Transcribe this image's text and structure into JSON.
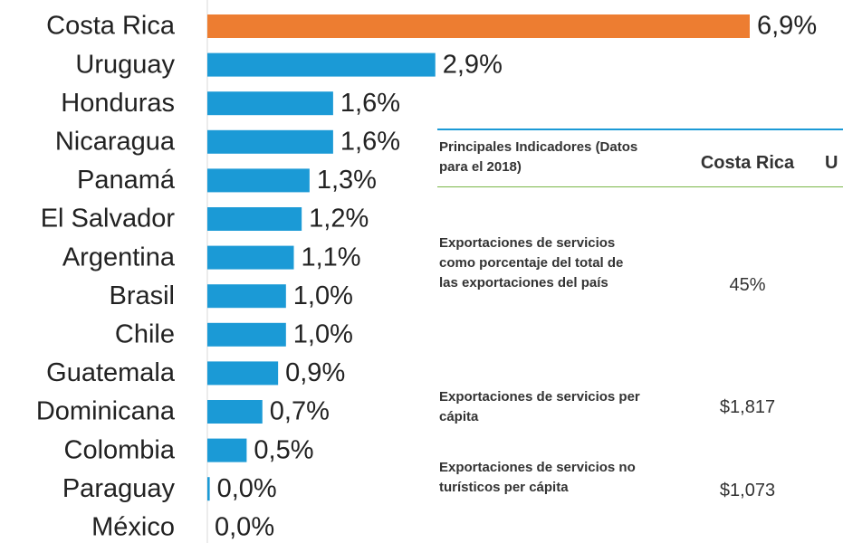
{
  "chart_data": {
    "type": "bar",
    "orientation": "horizontal",
    "categories": [
      "Costa Rica",
      "Uruguay",
      "Honduras",
      "Nicaragua",
      "Panamá",
      "El Salvador",
      "Argentina",
      "Brasil",
      "Chile",
      "Guatemala",
      "Dominicana",
      "Colombia",
      "Paraguay",
      "México"
    ],
    "values": [
      6.9,
      2.9,
      1.6,
      1.6,
      1.3,
      1.2,
      1.1,
      1.0,
      1.0,
      0.9,
      0.7,
      0.5,
      0.03,
      0.0
    ],
    "value_labels": [
      "6,9%",
      "2,9%",
      "1,6%",
      "1,6%",
      "1,3%",
      "1,2%",
      "1,1%",
      "1,0%",
      "1,0%",
      "0,9%",
      "0,7%",
      "0,5%",
      "0,0%",
      "0,0%"
    ],
    "colors": [
      "#ed7d31",
      "#1b9ad6",
      "#1b9ad6",
      "#1b9ad6",
      "#1b9ad6",
      "#1b9ad6",
      "#1b9ad6",
      "#1b9ad6",
      "#1b9ad6",
      "#1b9ad6",
      "#1b9ad6",
      "#1b9ad6",
      "#1b9ad6",
      "#1b9ad6"
    ],
    "xlim": [
      0,
      6.9
    ]
  },
  "table": {
    "header": [
      "Principales Indicadores (Datos para el 2018)",
      "Costa Rica",
      "U"
    ],
    "rows": [
      [
        "Exportaciones de servicios como porcentaje del total de las exportaciones del país",
        "45%"
      ],
      [
        "Exportaciones de servicios per cápita",
        "$1,817"
      ],
      [
        "Exportaciones de servicios no turísticos per cápita",
        "$1,073"
      ]
    ]
  }
}
